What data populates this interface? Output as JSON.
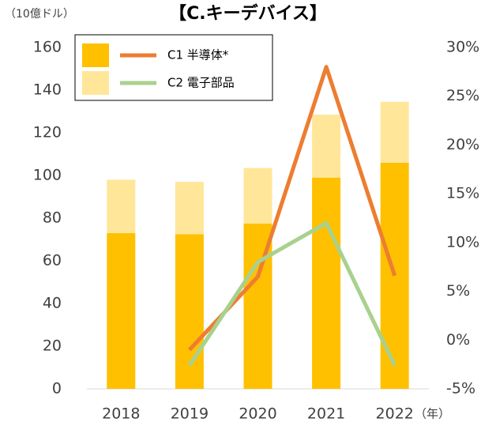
{
  "chart_data": {
    "type": "bar_line",
    "title": "【C.キーデバイス】",
    "y_unit": "（10億ドル）",
    "x_unit": "（年）",
    "categories": [
      "2018",
      "2019",
      "2020",
      "2021",
      "2022"
    ],
    "series": [
      {
        "name": "C1 半導体*",
        "color": "#ffc000",
        "line_color": "#ed7d31",
        "values": [
          73,
          72.5,
          77.5,
          99,
          106
        ],
        "line_values": [
          null,
          -1,
          6.5,
          28,
          6.6
        ]
      },
      {
        "name": "C2 電子部品",
        "color": "#ffe699",
        "line_color": "#a9d18e",
        "values": [
          25,
          24.5,
          26,
          29.5,
          28.5
        ],
        "line_values": [
          null,
          -2.6,
          8,
          12,
          -2.6
        ]
      }
    ],
    "ylim": [
      0,
      160
    ],
    "yticks": [
      0,
      20,
      40,
      60,
      80,
      100,
      120,
      140,
      160
    ],
    "y2lim": [
      -5,
      30
    ],
    "y2ticks": [
      {
        "value": -5,
        "label": "-5%"
      },
      {
        "value": 0,
        "label": "0%"
      },
      {
        "value": 5,
        "label": "5%"
      },
      {
        "value": 10,
        "label": "10%"
      },
      {
        "value": 15,
        "label": "15%"
      },
      {
        "value": 20,
        "label": "20%"
      },
      {
        "value": 25,
        "label": "25%"
      },
      {
        "value": 30,
        "label": "30%"
      }
    ],
    "legend": "upper left"
  }
}
